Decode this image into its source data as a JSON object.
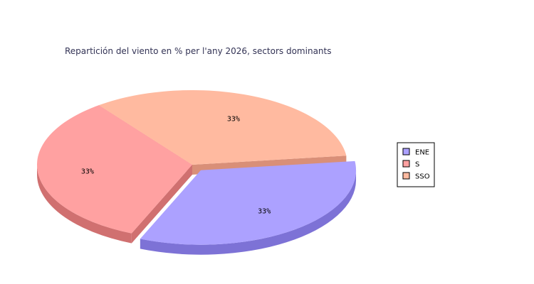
{
  "chart_data": {
    "type": "pie",
    "title": "Repartición del viento en % per l'any 2026, sectors dominants",
    "categories": [
      "ENE",
      "S",
      "SSO"
    ],
    "values": [
      33.33,
      33.33,
      33.33
    ],
    "labels": [
      "33%",
      "33%",
      "33%"
    ],
    "colors": {
      "top": [
        "#aca1ff",
        "#ffa1a1",
        "#ffbaa0"
      ],
      "side": [
        "#7d72d6",
        "#d07070",
        "#d98f78"
      ]
    },
    "exploded": [
      "ENE"
    ],
    "three_d": true,
    "legend_position": "right"
  }
}
